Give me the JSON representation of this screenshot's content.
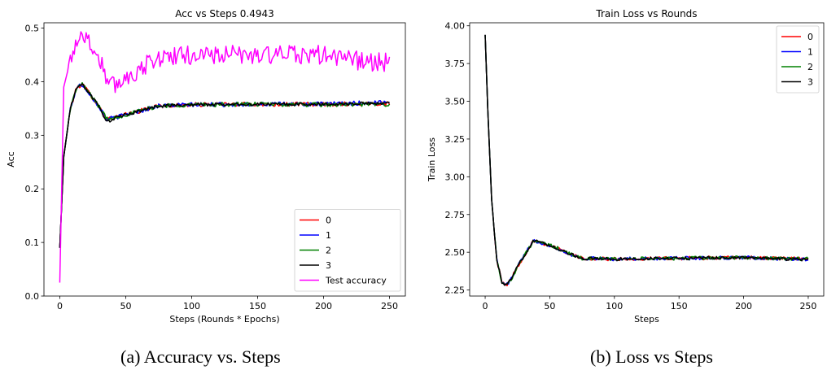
{
  "chart_data": [
    {
      "type": "line",
      "title": "Acc vs Steps 0.4943",
      "xlabel": "Steps (Rounds * Epochs)",
      "ylabel": "Acc",
      "xlim": [
        -12,
        262
      ],
      "ylim": [
        0,
        0.51
      ],
      "xticks": [
        "0",
        "50",
        "100",
        "150",
        "200",
        "250"
      ],
      "yticks": [
        "0.0",
        "0.1",
        "0.2",
        "0.3",
        "0.4",
        "0.5"
      ],
      "legend_position": "lower-right",
      "caption": "(a)  Accuracy vs. Steps",
      "series": [
        {
          "name": "0",
          "color": "#ff0000",
          "noise": 0.004
        },
        {
          "name": "1",
          "color": "#0000ff",
          "noise": 0.004
        },
        {
          "name": "2",
          "color": "#008000",
          "noise": 0.004
        },
        {
          "name": "3",
          "color": "#000000",
          "noise": 0.003
        },
        {
          "name": "Test accuracy",
          "color": "#ff00ff",
          "noise": 0.018
        }
      ],
      "trend": [
        {
          "name": "0",
          "points": [
            [
              0,
              0.09
            ],
            [
              3,
              0.26
            ],
            [
              8,
              0.35
            ],
            [
              13,
              0.39
            ],
            [
              17,
              0.395
            ],
            [
              22,
              0.38
            ],
            [
              28,
              0.36
            ],
            [
              36,
              0.33
            ],
            [
              45,
              0.335
            ],
            [
              60,
              0.345
            ],
            [
              75,
              0.355
            ],
            [
              100,
              0.357
            ],
            [
              150,
              0.358
            ],
            [
              200,
              0.358
            ],
            [
              250,
              0.36
            ]
          ]
        },
        {
          "name": "1",
          "points": [
            [
              0,
              0.09
            ],
            [
              3,
              0.26
            ],
            [
              8,
              0.35
            ],
            [
              13,
              0.39
            ],
            [
              17,
              0.395
            ],
            [
              22,
              0.38
            ],
            [
              28,
              0.36
            ],
            [
              36,
              0.33
            ],
            [
              45,
              0.335
            ],
            [
              60,
              0.345
            ],
            [
              75,
              0.355
            ],
            [
              100,
              0.357
            ],
            [
              150,
              0.358
            ],
            [
              200,
              0.358
            ],
            [
              250,
              0.362
            ]
          ]
        },
        {
          "name": "2",
          "points": [
            [
              0,
              0.09
            ],
            [
              3,
              0.26
            ],
            [
              8,
              0.35
            ],
            [
              13,
              0.39
            ],
            [
              17,
              0.395
            ],
            [
              22,
              0.38
            ],
            [
              28,
              0.36
            ],
            [
              36,
              0.33
            ],
            [
              45,
              0.335
            ],
            [
              60,
              0.345
            ],
            [
              75,
              0.355
            ],
            [
              100,
              0.357
            ],
            [
              150,
              0.358
            ],
            [
              200,
              0.357
            ],
            [
              250,
              0.358
            ]
          ]
        },
        {
          "name": "3",
          "points": [
            [
              0,
              0.09
            ],
            [
              3,
              0.26
            ],
            [
              8,
              0.35
            ],
            [
              13,
              0.39
            ],
            [
              17,
              0.395
            ],
            [
              22,
              0.38
            ],
            [
              28,
              0.36
            ],
            [
              36,
              0.325
            ],
            [
              45,
              0.335
            ],
            [
              60,
              0.345
            ],
            [
              75,
              0.355
            ],
            [
              100,
              0.357
            ],
            [
              150,
              0.358
            ],
            [
              200,
              0.358
            ],
            [
              250,
              0.36
            ]
          ]
        },
        {
          "name": "Test accuracy",
          "points": [
            [
              0,
              0.025
            ],
            [
              3,
              0.39
            ],
            [
              8,
              0.44
            ],
            [
              13,
              0.48
            ],
            [
              17,
              0.49
            ],
            [
              22,
              0.475
            ],
            [
              28,
              0.45
            ],
            [
              33,
              0.43
            ],
            [
              37,
              0.39
            ],
            [
              42,
              0.395
            ],
            [
              55,
              0.415
            ],
            [
              75,
              0.445
            ],
            [
              100,
              0.45
            ],
            [
              150,
              0.45
            ],
            [
              200,
              0.45
            ],
            [
              225,
              0.44
            ],
            [
              250,
              0.435
            ]
          ]
        }
      ]
    },
    {
      "type": "line",
      "title": "Train Loss vs Rounds",
      "xlabel": "Steps",
      "ylabel": "Train Loss",
      "xlim": [
        -12,
        262
      ],
      "ylim": [
        2.21,
        4.02
      ],
      "xticks": [
        "0",
        "50",
        "100",
        "150",
        "200",
        "250"
      ],
      "yticks": [
        "2.25",
        "2.50",
        "2.75",
        "3.00",
        "3.25",
        "3.50",
        "3.75",
        "4.00"
      ],
      "legend_position": "upper-right",
      "caption": "(b)  Loss vs Steps",
      "series": [
        {
          "name": "0",
          "color": "#ff0000",
          "noise": 0.012
        },
        {
          "name": "1",
          "color": "#0000ff",
          "noise": 0.012
        },
        {
          "name": "2",
          "color": "#008000",
          "noise": 0.012
        },
        {
          "name": "3",
          "color": "#000000",
          "noise": 0.01
        }
      ],
      "trend": [
        {
          "name": "0",
          "points": [
            [
              0,
              3.94
            ],
            [
              2,
              3.45
            ],
            [
              5,
              2.85
            ],
            [
              9,
              2.45
            ],
            [
              13,
              2.3
            ],
            [
              16,
              2.28
            ],
            [
              20,
              2.32
            ],
            [
              26,
              2.42
            ],
            [
              32,
              2.5
            ],
            [
              37,
              2.58
            ],
            [
              45,
              2.56
            ],
            [
              55,
              2.53
            ],
            [
              65,
              2.49
            ],
            [
              75,
              2.46
            ],
            [
              100,
              2.455
            ],
            [
              150,
              2.46
            ],
            [
              200,
              2.465
            ],
            [
              250,
              2.455
            ]
          ]
        },
        {
          "name": "1",
          "points": [
            [
              0,
              3.94
            ],
            [
              2,
              3.45
            ],
            [
              5,
              2.85
            ],
            [
              9,
              2.45
            ],
            [
              13,
              2.3
            ],
            [
              16,
              2.28
            ],
            [
              20,
              2.32
            ],
            [
              26,
              2.42
            ],
            [
              32,
              2.5
            ],
            [
              37,
              2.58
            ],
            [
              45,
              2.56
            ],
            [
              55,
              2.53
            ],
            [
              65,
              2.49
            ],
            [
              75,
              2.46
            ],
            [
              100,
              2.455
            ],
            [
              150,
              2.46
            ],
            [
              200,
              2.465
            ],
            [
              250,
              2.45
            ]
          ]
        },
        {
          "name": "2",
          "points": [
            [
              0,
              3.94
            ],
            [
              2,
              3.45
            ],
            [
              5,
              2.85
            ],
            [
              9,
              2.45
            ],
            [
              13,
              2.3
            ],
            [
              16,
              2.28
            ],
            [
              20,
              2.32
            ],
            [
              26,
              2.42
            ],
            [
              32,
              2.5
            ],
            [
              37,
              2.57
            ],
            [
              45,
              2.56
            ],
            [
              55,
              2.53
            ],
            [
              65,
              2.49
            ],
            [
              75,
              2.46
            ],
            [
              100,
              2.455
            ],
            [
              150,
              2.46
            ],
            [
              200,
              2.465
            ],
            [
              250,
              2.455
            ]
          ]
        },
        {
          "name": "3",
          "points": [
            [
              0,
              3.94
            ],
            [
              2,
              3.45
            ],
            [
              5,
              2.85
            ],
            [
              9,
              2.45
            ],
            [
              13,
              2.3
            ],
            [
              16,
              2.28
            ],
            [
              20,
              2.32
            ],
            [
              26,
              2.42
            ],
            [
              32,
              2.5
            ],
            [
              37,
              2.58
            ],
            [
              45,
              2.56
            ],
            [
              55,
              2.53
            ],
            [
              65,
              2.49
            ],
            [
              75,
              2.46
            ],
            [
              100,
              2.455
            ],
            [
              150,
              2.46
            ],
            [
              200,
              2.465
            ],
            [
              250,
              2.45
            ]
          ]
        }
      ]
    }
  ]
}
